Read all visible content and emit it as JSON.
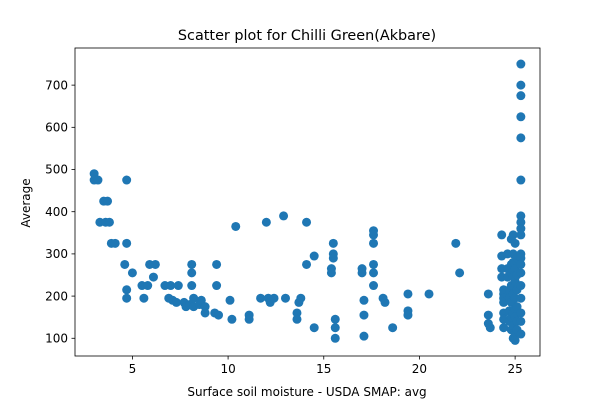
{
  "chart_data": {
    "type": "scatter",
    "title": "Scatter plot for Chilli Green(Akbare)",
    "xlabel": "Surface soil moisture - USDA SMAP: avg",
    "ylabel": "Average",
    "xlim": [
      2.0,
      26.3
    ],
    "ylim": [
      58,
      788
    ],
    "xticks": [
      5,
      10,
      15,
      20,
      25
    ],
    "yticks": [
      100,
      200,
      300,
      400,
      500,
      600,
      700
    ],
    "grid": false,
    "marker_color": "#1f77b4",
    "points": [
      [
        3.0,
        490
      ],
      [
        3.0,
        475
      ],
      [
        3.2,
        475
      ],
      [
        3.3,
        375
      ],
      [
        3.5,
        425
      ],
      [
        3.6,
        375
      ],
      [
        3.7,
        425
      ],
      [
        3.8,
        375
      ],
      [
        3.9,
        325
      ],
      [
        4.1,
        325
      ],
      [
        4.7,
        475
      ],
      [
        4.7,
        325
      ],
      [
        4.6,
        275
      ],
      [
        4.7,
        215
      ],
      [
        4.7,
        195
      ],
      [
        5.0,
        255
      ],
      [
        5.5,
        225
      ],
      [
        5.6,
        195
      ],
      [
        5.8,
        225
      ],
      [
        5.9,
        275
      ],
      [
        6.2,
        275
      ],
      [
        6.1,
        245
      ],
      [
        6.7,
        225
      ],
      [
        6.9,
        195
      ],
      [
        7.0,
        225
      ],
      [
        7.1,
        190
      ],
      [
        7.3,
        185
      ],
      [
        7.4,
        225
      ],
      [
        7.7,
        185
      ],
      [
        7.8,
        175
      ],
      [
        8.0,
        180
      ],
      [
        8.1,
        275
      ],
      [
        8.1,
        255
      ],
      [
        8.1,
        225
      ],
      [
        8.2,
        195
      ],
      [
        8.2,
        175
      ],
      [
        8.5,
        180
      ],
      [
        8.6,
        190
      ],
      [
        8.8,
        175
      ],
      [
        8.8,
        160
      ],
      [
        9.3,
        160
      ],
      [
        9.4,
        275
      ],
      [
        9.4,
        225
      ],
      [
        9.5,
        155
      ],
      [
        10.1,
        190
      ],
      [
        10.2,
        145
      ],
      [
        10.4,
        365
      ],
      [
        11.1,
        155
      ],
      [
        11.1,
        145
      ],
      [
        11.7,
        195
      ],
      [
        12.0,
        375
      ],
      [
        12.1,
        195
      ],
      [
        12.2,
        185
      ],
      [
        12.4,
        195
      ],
      [
        12.9,
        390
      ],
      [
        13.0,
        195
      ],
      [
        13.6,
        160
      ],
      [
        13.6,
        145
      ],
      [
        13.7,
        185
      ],
      [
        13.8,
        195
      ],
      [
        14.1,
        375
      ],
      [
        14.1,
        275
      ],
      [
        14.5,
        295
      ],
      [
        14.5,
        125
      ],
      [
        15.4,
        265
      ],
      [
        15.4,
        255
      ],
      [
        15.5,
        325
      ],
      [
        15.5,
        300
      ],
      [
        15.5,
        290
      ],
      [
        15.6,
        145
      ],
      [
        15.6,
        125
      ],
      [
        15.6,
        100
      ],
      [
        17.0,
        265
      ],
      [
        17.0,
        255
      ],
      [
        17.1,
        190
      ],
      [
        17.1,
        155
      ],
      [
        17.1,
        105
      ],
      [
        17.6,
        355
      ],
      [
        17.6,
        345
      ],
      [
        17.6,
        325
      ],
      [
        17.6,
        275
      ],
      [
        17.6,
        255
      ],
      [
        17.6,
        225
      ],
      [
        18.1,
        195
      ],
      [
        18.2,
        185
      ],
      [
        18.6,
        125
      ],
      [
        19.4,
        205
      ],
      [
        19.4,
        165
      ],
      [
        19.4,
        155
      ],
      [
        20.5,
        205
      ],
      [
        21.9,
        325
      ],
      [
        22.1,
        255
      ],
      [
        23.6,
        205
      ],
      [
        23.6,
        155
      ],
      [
        23.6,
        135
      ],
      [
        23.7,
        125
      ],
      [
        24.3,
        345
      ],
      [
        24.3,
        295
      ],
      [
        24.3,
        265
      ],
      [
        24.3,
        245
      ],
      [
        24.4,
        215
      ],
      [
        24.4,
        205
      ],
      [
        24.4,
        195
      ],
      [
        24.4,
        185
      ],
      [
        24.4,
        160
      ],
      [
        24.4,
        145
      ],
      [
        24.4,
        125
      ],
      [
        24.6,
        300
      ],
      [
        24.6,
        265
      ],
      [
        24.6,
        245
      ],
      [
        24.7,
        215
      ],
      [
        24.7,
        195
      ],
      [
        24.7,
        165
      ],
      [
        24.7,
        140
      ],
      [
        24.8,
        335
      ],
      [
        24.8,
        275
      ],
      [
        24.8,
        255
      ],
      [
        24.8,
        225
      ],
      [
        24.8,
        185
      ],
      [
        24.8,
        150
      ],
      [
        24.8,
        120
      ],
      [
        24.9,
        345
      ],
      [
        24.9,
        300
      ],
      [
        24.9,
        280
      ],
      [
        24.9,
        245
      ],
      [
        24.9,
        205
      ],
      [
        24.9,
        160
      ],
      [
        24.9,
        130
      ],
      [
        24.9,
        100
      ],
      [
        25.0,
        325
      ],
      [
        25.0,
        265
      ],
      [
        25.0,
        235
      ],
      [
        25.0,
        195
      ],
      [
        25.0,
        170
      ],
      [
        25.0,
        150
      ],
      [
        25.0,
        110
      ],
      [
        25.0,
        95
      ],
      [
        25.1,
        290
      ],
      [
        25.1,
        250
      ],
      [
        25.1,
        215
      ],
      [
        25.1,
        175
      ],
      [
        25.1,
        140
      ],
      [
        25.1,
        120
      ],
      [
        25.3,
        750
      ],
      [
        25.3,
        700
      ],
      [
        25.3,
        675
      ],
      [
        25.3,
        625
      ],
      [
        25.3,
        575
      ],
      [
        25.3,
        475
      ],
      [
        25.3,
        390
      ],
      [
        25.3,
        375
      ],
      [
        25.3,
        360
      ],
      [
        25.3,
        345
      ],
      [
        25.3,
        300
      ],
      [
        25.3,
        290
      ],
      [
        25.3,
        275
      ],
      [
        25.3,
        255
      ],
      [
        25.3,
        225
      ],
      [
        25.3,
        195
      ],
      [
        25.3,
        160
      ],
      [
        25.3,
        140
      ],
      [
        25.3,
        110
      ]
    ]
  }
}
